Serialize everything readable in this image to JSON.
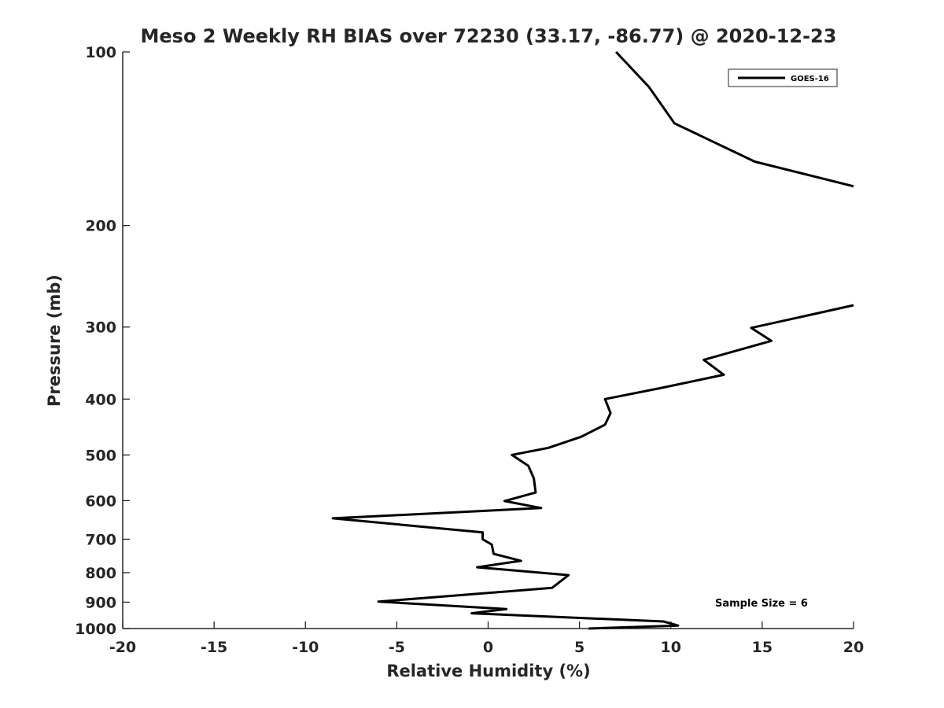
{
  "chart_data": {
    "type": "line",
    "title": "Meso 2 Weekly RH BIAS over 72230 (33.17, -86.77) @ 2020-12-23",
    "xlabel": "Relative Humidity (%)",
    "ylabel": "Pressure (mb)",
    "xlim": [
      -20,
      20
    ],
    "ylim": [
      100,
      1000
    ],
    "yscale": "log",
    "y_reversed": true,
    "xticks": [
      -20,
      -15,
      -10,
      -5,
      0,
      5,
      10,
      15,
      20
    ],
    "yticks": [
      100,
      200,
      300,
      400,
      500,
      600,
      700,
      800,
      900,
      1000
    ],
    "legend": {
      "position": "top-right",
      "entries": [
        "GOES-16"
      ]
    },
    "annotation": "Sample Size = 6",
    "series": [
      {
        "name": "GOES-16",
        "color": "#000000",
        "segments": [
          [
            {
              "x": 7.0,
              "p": 100
            },
            {
              "x": 8.8,
              "p": 115
            },
            {
              "x": 10.2,
              "p": 133
            },
            {
              "x": 14.6,
              "p": 155
            },
            {
              "x": 20.0,
              "p": 171
            }
          ],
          [
            {
              "x": 20.0,
              "p": 275
            },
            {
              "x": 17.8,
              "p": 285
            },
            {
              "x": 14.4,
              "p": 301
            },
            {
              "x": 15.5,
              "p": 317
            },
            {
              "x": 11.8,
              "p": 342
            },
            {
              "x": 12.9,
              "p": 363
            },
            {
              "x": 9.4,
              "p": 383
            },
            {
              "x": 6.4,
              "p": 400
            },
            {
              "x": 6.7,
              "p": 423
            },
            {
              "x": 6.4,
              "p": 443
            },
            {
              "x": 5.1,
              "p": 465
            },
            {
              "x": 3.3,
              "p": 486
            },
            {
              "x": 1.3,
              "p": 500
            },
            {
              "x": 2.2,
              "p": 522
            },
            {
              "x": 2.5,
              "p": 549
            },
            {
              "x": 2.6,
              "p": 581
            },
            {
              "x": 0.9,
              "p": 601
            },
            {
              "x": 2.9,
              "p": 618
            },
            {
              "x": -8.5,
              "p": 644
            },
            {
              "x": -0.3,
              "p": 681
            },
            {
              "x": -0.3,
              "p": 700
            },
            {
              "x": 0.2,
              "p": 715
            },
            {
              "x": 0.3,
              "p": 742
            },
            {
              "x": 1.8,
              "p": 763
            },
            {
              "x": -0.6,
              "p": 783
            },
            {
              "x": 4.4,
              "p": 808
            },
            {
              "x": 3.5,
              "p": 850
            },
            {
              "x": -6.0,
              "p": 898
            },
            {
              "x": 1.0,
              "p": 925
            },
            {
              "x": -0.9,
              "p": 941
            },
            {
              "x": 9.6,
              "p": 972
            },
            {
              "x": 10.4,
              "p": 988
            },
            {
              "x": 5.5,
              "p": 1000
            }
          ]
        ]
      }
    ]
  }
}
